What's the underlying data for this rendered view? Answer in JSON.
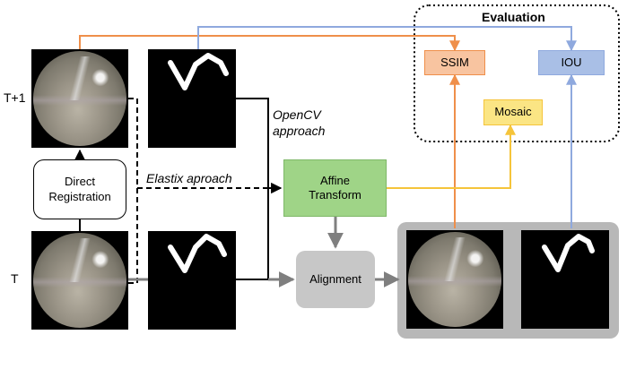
{
  "labels": {
    "t_plus_1": "T+1",
    "t": "T",
    "evaluation": "Evaluation",
    "ssim": "SSIM",
    "iou": "IOU",
    "mosaic": "Mosaic",
    "direct_registration": "Direct Registration",
    "opencv_approach": "OpenCV approach",
    "elastix_approach": "Elastix aproach",
    "affine_transform": "Affine Transform",
    "alignment": "Alignment"
  },
  "colors": {
    "orange": "#ef8f4a",
    "blue": "#8fa9de",
    "yellow": "#f5c43a",
    "ssim_fill": "#f8c4a0",
    "iou_fill": "#a9bfe6",
    "mosaic_fill": "#fbe584",
    "affine_fill": "#9fd487",
    "alignment_fill": "#c7c7c7",
    "result_panel": "#b8b8b8",
    "gray_arrow": "#7f7f7f"
  },
  "icons": {
    "endoscopic_frame": "endoscopic-image",
    "vessel_mask": "binary-mask-image"
  }
}
